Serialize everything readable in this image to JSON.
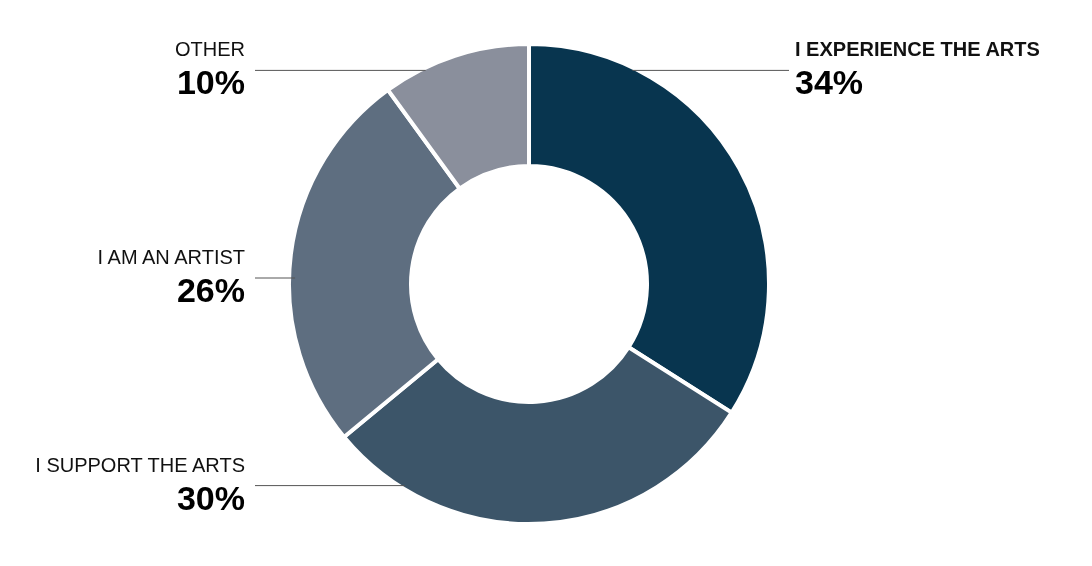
{
  "chart_data": {
    "type": "donut",
    "categories": [
      "I EXPERIENCE THE ARTS",
      "I SUPPORT THE ARTS",
      "I AM AN ARTIST",
      "OTHER"
    ],
    "values": [
      34,
      30,
      26,
      10
    ],
    "colors": [
      "#08354f",
      "#3c5569",
      "#5e6e80",
      "#8a8f9c"
    ],
    "value_labels": [
      "34%",
      "30%",
      "26%",
      "10%"
    ]
  }
}
